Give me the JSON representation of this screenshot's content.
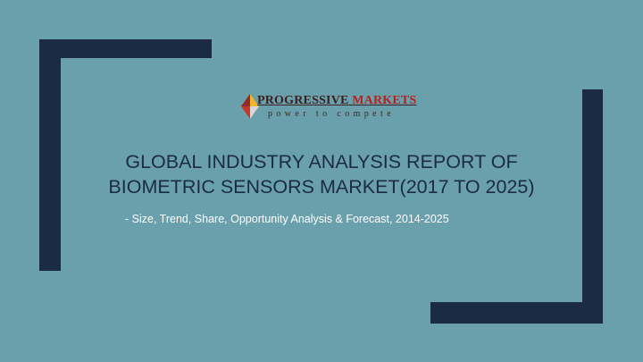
{
  "logo": {
    "name_part1": "PROGRESSIVE",
    "name_part2": "MARKETS",
    "tagline": "power to compete"
  },
  "title": {
    "line1": "GLOBAL INDUSTRY ANALYSIS REPORT OF",
    "line2": "BIOMETRIC SENSORS MARKET(2017 TO 2025)"
  },
  "subtitle": "- Size, Trend, Share, Opportunity Analysis & Forecast, 2014-2025",
  "colors": {
    "background": "#6a9fac",
    "bracket": "#1b2b42",
    "title": "#1b2b42",
    "subtitle": "#ffffff",
    "logo_accent": "#b8201e"
  }
}
